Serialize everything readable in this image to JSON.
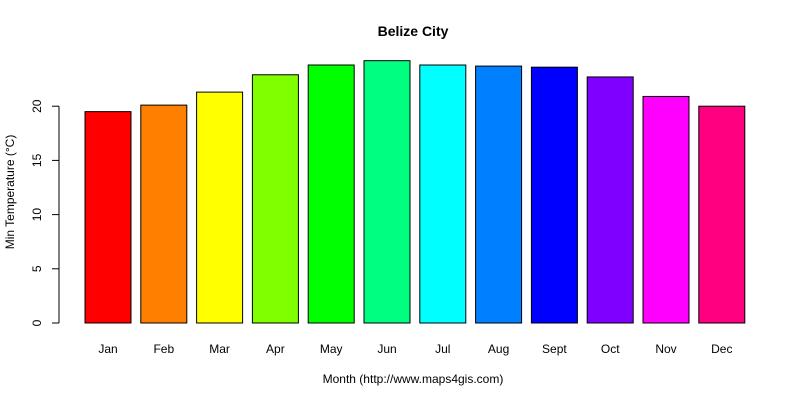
{
  "chart_data": {
    "type": "bar",
    "title": "Belize City",
    "xlabel": "Month (http://www.maps4gis.com)",
    "ylabel": "Min Temperature (°C)",
    "categories": [
      "Jan",
      "Feb",
      "Mar",
      "Apr",
      "May",
      "Jun",
      "Jul",
      "Aug",
      "Sept",
      "Oct",
      "Nov",
      "Dec"
    ],
    "values": [
      19.5,
      20.1,
      21.3,
      22.9,
      23.8,
      24.2,
      23.8,
      23.7,
      23.6,
      22.7,
      20.9,
      20.0
    ],
    "colors": [
      "#FF0000",
      "#FF8000",
      "#FFFF00",
      "#80FF00",
      "#00FF00",
      "#00FF80",
      "#00FFFF",
      "#0080FF",
      "#0000FF",
      "#8000FF",
      "#FF00FF",
      "#FF0080"
    ],
    "yticks": [
      0,
      5,
      10,
      15,
      20
    ],
    "ylim": [
      0,
      24.5
    ],
    "grid": false,
    "legend": "none"
  }
}
